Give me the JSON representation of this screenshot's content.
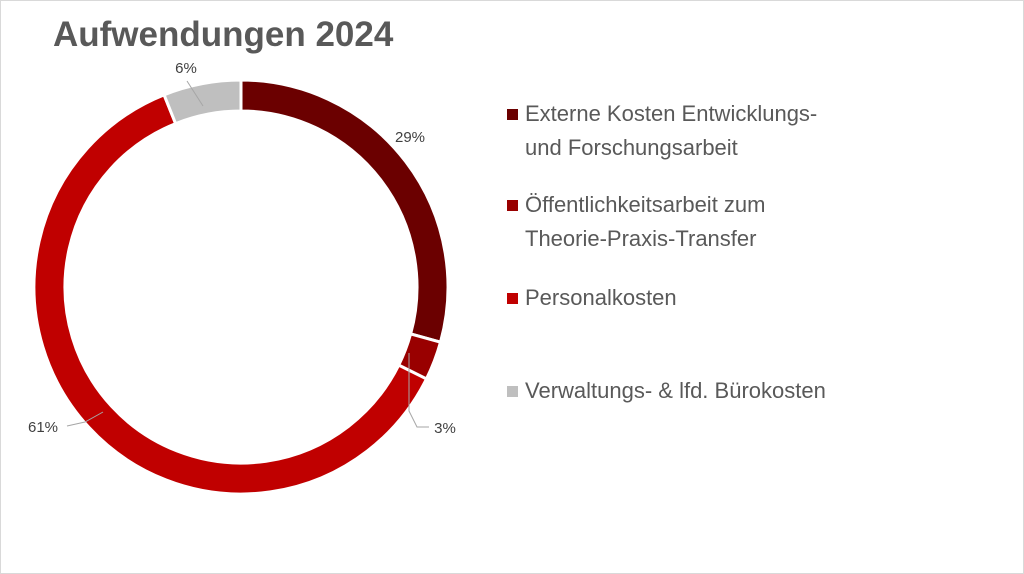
{
  "chart_data": {
    "type": "donut",
    "title": "Aufwendungen 2024",
    "series": [
      {
        "name": "Externe Kosten Entwicklungs-\nund Forschungsarbeit",
        "value": 29,
        "label": "29%",
        "color": "#6b0000"
      },
      {
        "name": "Öffentlichkeitsarbeit zum\nTheorie-Praxis-Transfer",
        "value": 3,
        "label": "3%",
        "color": "#990000"
      },
      {
        "name": "Personalkosten",
        "value": 61,
        "label": "61%",
        "color": "#c00000"
      },
      {
        "name": "Verwaltungs- & lfd. Bürokosten",
        "value": 6,
        "label": "6%",
        "color": "#bfbfbf"
      }
    ],
    "start_angle_deg": 0,
    "direction": "clockwise",
    "legend_position": "right"
  }
}
